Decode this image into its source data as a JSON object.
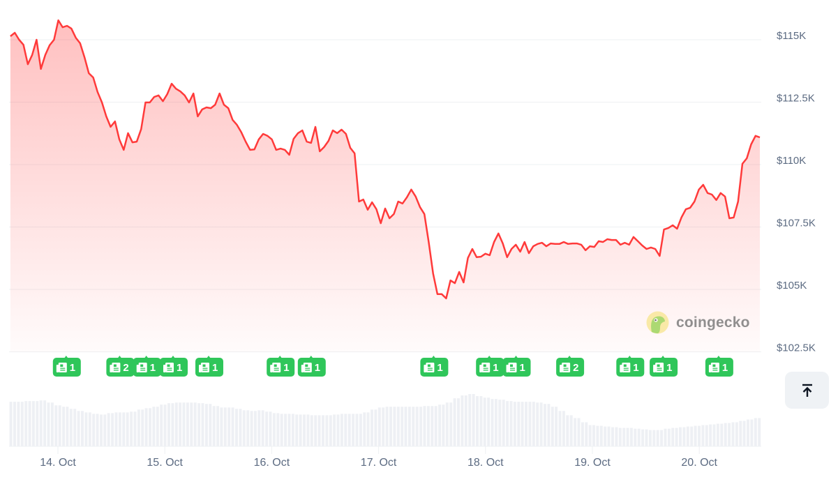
{
  "chart_data": {
    "type": "line",
    "title": "",
    "xlabel": "",
    "ylabel": "",
    "x_range": [
      "13 Oct 13:20",
      "20 Oct 13:36"
    ],
    "ylim": [
      102500,
      116000
    ],
    "y_ticks": [
      {
        "value": 115000,
        "label": "$115K"
      },
      {
        "value": 112500,
        "label": "$112.5K"
      },
      {
        "value": 110000,
        "label": "$110K"
      },
      {
        "value": 107500,
        "label": "$107.5K"
      },
      {
        "value": 105000,
        "label": "$105K"
      },
      {
        "value": 102500,
        "label": "$102.5K"
      }
    ],
    "x_ticks": [
      {
        "time": "14 Oct 00:00",
        "label": "14. Oct"
      },
      {
        "time": "15 Oct 00:00",
        "label": "15. Oct"
      },
      {
        "time": "16 Oct 00:00",
        "label": "16. Oct"
      },
      {
        "time": "17 Oct 00:00",
        "label": "17. Oct"
      },
      {
        "time": "18 Oct 00:00",
        "label": "18. Oct"
      },
      {
        "time": "19 Oct 00:00",
        "label": "19. Oct"
      },
      {
        "time": "20 Oct 00:00",
        "label": "20. Oct"
      }
    ],
    "grid": true,
    "line_color": "#ff3a3a",
    "price_usd": [
      115140,
      115280,
      115000,
      114800,
      114020,
      114390,
      115000,
      113830,
      114390,
      114780,
      115000,
      115780,
      115500,
      115560,
      115450,
      115080,
      114860,
      114300,
      113660,
      113490,
      112910,
      112490,
      111930,
      111510,
      111730,
      111010,
      110590,
      111260,
      110890,
      110920,
      111420,
      112490,
      112490,
      112710,
      112770,
      112540,
      112820,
      113240,
      113040,
      112930,
      112770,
      112490,
      112850,
      111930,
      112210,
      112290,
      112260,
      112400,
      112850,
      112400,
      112260,
      111790,
      111590,
      111290,
      110920,
      110590,
      110610,
      111010,
      111230,
      111150,
      111010,
      110590,
      110640,
      110590,
      110390,
      111030,
      111260,
      111370,
      110920,
      110870,
      111510,
      110530,
      110700,
      110950,
      111370,
      111260,
      111400,
      111230,
      110670,
      110450,
      108520,
      108600,
      108190,
      108490,
      108210,
      107650,
      108240,
      107850,
      108020,
      108520,
      108440,
      108690,
      109000,
      108720,
      108300,
      108020,
      106900,
      105640,
      104810,
      104810,
      104640,
      105360,
      105250,
      105700,
      105280,
      106260,
      106620,
      106290,
      106310,
      106430,
      106370,
      106900,
      107240,
      106840,
      106290,
      106620,
      106790,
      106510,
      106900,
      106450,
      106730,
      106820,
      106870,
      106730,
      106840,
      106820,
      106820,
      106900,
      106820,
      106840,
      106840,
      106790,
      106570,
      106730,
      106700,
      106930,
      106900,
      107010,
      106980,
      106980,
      106790,
      106870,
      106790,
      107100,
      106930,
      106760,
      106620,
      106680,
      106620,
      106340,
      107400,
      107460,
      107570,
      107430,
      107880,
      108210,
      108270,
      108520,
      109000,
      109190,
      108860,
      108800,
      108580,
      108860,
      108720,
      107850,
      107880,
      108520,
      110030,
      110250,
      110810,
      111150,
      111090
    ],
    "volume_relative": [
      63,
      63,
      64,
      64,
      65,
      62,
      58,
      56,
      53,
      50,
      48,
      46,
      45,
      47,
      48,
      48,
      49,
      52,
      54,
      56,
      59,
      61,
      62,
      62,
      62,
      61,
      60,
      57,
      55,
      55,
      53,
      51,
      50,
      51,
      49,
      47,
      46,
      46,
      45,
      45,
      44,
      44,
      44,
      45,
      46,
      46,
      46,
      48,
      52,
      55,
      56,
      56,
      56,
      56,
      56,
      57,
      57,
      59,
      62,
      68,
      72,
      74,
      71,
      69,
      67,
      66,
      64,
      63,
      63,
      63,
      62,
      60,
      56,
      50,
      44,
      40,
      34,
      30,
      29,
      28,
      27,
      26,
      26,
      25,
      24,
      23,
      23,
      25,
      26,
      27,
      28,
      29,
      30,
      31,
      32,
      33,
      34,
      36,
      38,
      40
    ],
    "volume_color": "#eef0f4",
    "news_badges": [
      {
        "time": "14 Oct 02:00",
        "count": "1"
      },
      {
        "time": "14 Oct 14:00",
        "count": "2"
      },
      {
        "time": "14 Oct 20:00",
        "count": "1"
      },
      {
        "time": "15 Oct 02:00",
        "count": "1"
      },
      {
        "time": "15 Oct 10:00",
        "count": "1"
      },
      {
        "time": "16 Oct 02:00",
        "count": "1"
      },
      {
        "time": "16 Oct 09:00",
        "count": "1"
      },
      {
        "time": "17 Oct 12:30",
        "count": "1"
      },
      {
        "time": "18 Oct 01:00",
        "count": "1"
      },
      {
        "time": "18 Oct 07:00",
        "count": "1"
      },
      {
        "time": "18 Oct 19:00",
        "count": "2"
      },
      {
        "time": "19 Oct 08:30",
        "count": "1"
      },
      {
        "time": "19 Oct 16:00",
        "count": "1"
      },
      {
        "time": "20 Oct 04:30",
        "count": "1"
      }
    ],
    "badge_color": "#2fc65a",
    "badge_icon": "newspaper-icon"
  },
  "watermark": {
    "text": "coingecko",
    "icon": "gecko-logo"
  },
  "scroll_top_button": {
    "icon": "arrow-up-to-line-icon"
  }
}
